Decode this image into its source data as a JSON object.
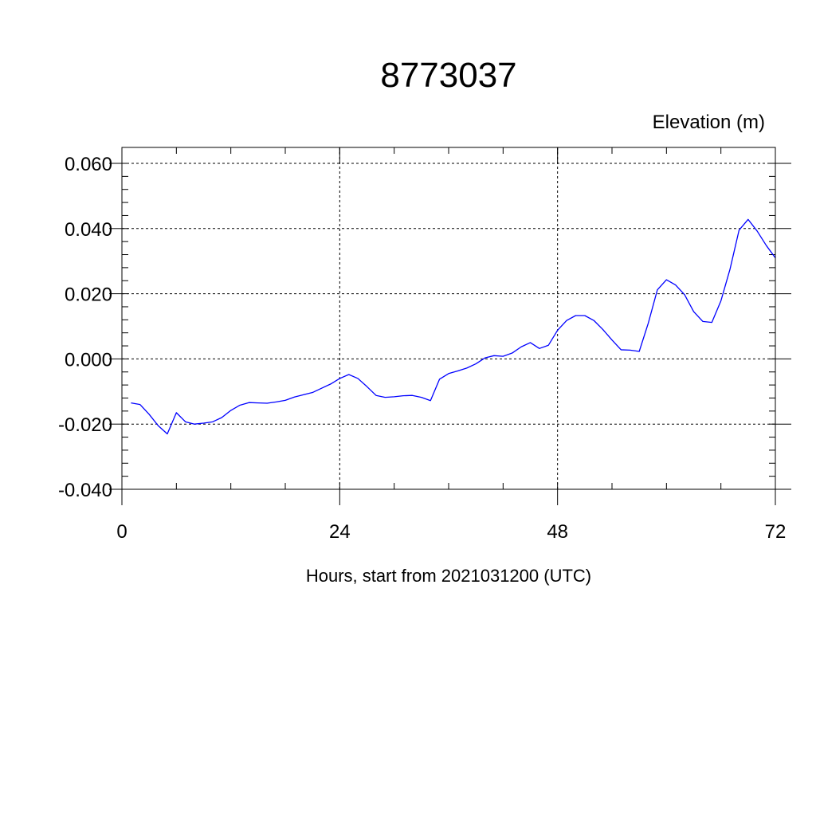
{
  "chart_data": {
    "type": "line",
    "title": "8773037",
    "ylabel": "Elevation (m)",
    "xlabel": "Hours, start from 2021031200 (UTC)",
    "xlim": [
      0,
      72
    ],
    "ylim": [
      -0.04,
      0.06
    ],
    "xticks": [
      0,
      24,
      48,
      72
    ],
    "xtick_labels": [
      "0",
      "24",
      "48",
      "72"
    ],
    "yticks": [
      -0.04,
      -0.02,
      0.0,
      0.02,
      0.04,
      0.06
    ],
    "ytick_labels": [
      "-0.040",
      "-0.020",
      "0.000",
      "0.020",
      "0.040",
      "0.060"
    ],
    "grid": true,
    "series": [
      {
        "color": "#0000ff",
        "x": [
          1,
          2,
          3,
          4,
          5,
          6,
          7,
          8,
          9,
          10,
          11,
          12,
          13,
          14,
          15,
          16,
          17,
          18,
          19,
          20,
          21,
          22,
          23,
          24,
          25,
          26,
          27,
          28,
          29,
          30,
          31,
          32,
          33,
          34,
          35,
          36,
          37,
          38,
          39,
          40,
          41,
          42,
          43,
          44,
          45,
          46,
          47,
          48,
          49,
          50,
          51,
          52,
          53,
          54,
          55,
          56,
          57,
          58,
          59,
          60,
          61,
          62,
          63,
          64,
          65,
          66,
          67,
          68,
          69,
          70,
          71,
          72
        ],
        "y": [
          -0.0135,
          -0.014,
          -0.017,
          -0.0205,
          -0.023,
          -0.0165,
          -0.0193,
          -0.02,
          -0.0197,
          -0.0193,
          -0.018,
          -0.0158,
          -0.0142,
          -0.0134,
          -0.0135,
          -0.0136,
          -0.0132,
          -0.0127,
          -0.0117,
          -0.011,
          -0.0103,
          -0.009,
          -0.0077,
          -0.006,
          -0.0048,
          -0.006,
          -0.0085,
          -0.0112,
          -0.0118,
          -0.0116,
          -0.0113,
          -0.0112,
          -0.0118,
          -0.0128,
          -0.0062,
          -0.0045,
          -0.0037,
          -0.0028,
          -0.0015,
          0.0003,
          0.001,
          0.0008,
          0.0018,
          0.0037,
          0.005,
          0.0032,
          0.0042,
          0.0088,
          0.0118,
          0.0133,
          0.0133,
          0.0118,
          0.009,
          0.0058,
          0.0028,
          0.0027,
          0.0023,
          0.011,
          0.0212,
          0.0243,
          0.0227,
          0.0197,
          0.0145,
          0.0115,
          0.0112,
          0.0178,
          0.0275,
          0.0395,
          0.0428,
          0.0392,
          0.0348,
          0.031
        ]
      }
    ]
  }
}
